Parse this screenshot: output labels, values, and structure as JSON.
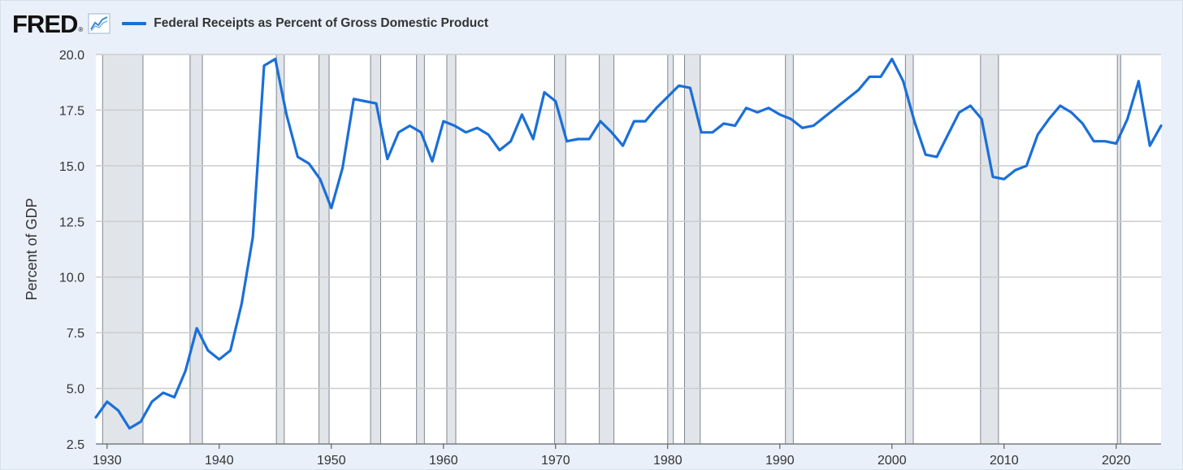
{
  "header": {
    "logo_text": "FRED",
    "logo_mark": "®",
    "graph_icon": "line-graph-icon",
    "series_label": "Federal Receipts as Percent of Gross Domestic Product"
  },
  "colors": {
    "background": "#e9f0fa",
    "plot_background": "#ffffff",
    "series": "#1a6fd8",
    "recession_shade": "#e1e5ea",
    "gridline": "#cccccc"
  },
  "chart_data": {
    "type": "line",
    "title": "",
    "xlabel": "",
    "ylabel": "Percent of GDP",
    "xlim": [
      1929,
      2024
    ],
    "ylim": [
      2.5,
      20.0
    ],
    "x_ticks": [
      1930,
      1940,
      1950,
      1960,
      1970,
      1980,
      1990,
      2000,
      2010,
      2020
    ],
    "y_ticks": [
      "2.5",
      "5.0",
      "7.5",
      "10.0",
      "12.5",
      "15.0",
      "17.5",
      "20.0"
    ],
    "grid": true,
    "legend_position": "top-left",
    "recessions": [
      [
        1929.6,
        1933.2
      ],
      [
        1937.4,
        1938.5
      ],
      [
        1945.1,
        1945.8
      ],
      [
        1948.9,
        1949.8
      ],
      [
        1953.5,
        1954.4
      ],
      [
        1957.6,
        1958.3
      ],
      [
        1960.3,
        1961.1
      ],
      [
        1969.9,
        1970.9
      ],
      [
        1973.9,
        1975.2
      ],
      [
        1980.0,
        1980.5
      ],
      [
        1981.5,
        1982.9
      ],
      [
        1990.5,
        1991.2
      ],
      [
        2001.2,
        2001.9
      ],
      [
        2007.9,
        2009.5
      ],
      [
        2020.1,
        2020.4
      ]
    ],
    "series": [
      {
        "name": "Federal Receipts as Percent of Gross Domestic Product",
        "x": [
          1929,
          1930,
          1931,
          1932,
          1933,
          1934,
          1935,
          1936,
          1937,
          1938,
          1939,
          1940,
          1941,
          1942,
          1943,
          1944,
          1945,
          1946,
          1947,
          1948,
          1949,
          1950,
          1951,
          1952,
          1953,
          1954,
          1955,
          1956,
          1957,
          1958,
          1959,
          1960,
          1961,
          1962,
          1963,
          1964,
          1965,
          1966,
          1967,
          1968,
          1969,
          1970,
          1971,
          1972,
          1973,
          1974,
          1975,
          1976,
          1977,
          1978,
          1979,
          1980,
          1981,
          1982,
          1983,
          1984,
          1985,
          1986,
          1987,
          1988,
          1989,
          1990,
          1991,
          1992,
          1993,
          1994,
          1995,
          1996,
          1997,
          1998,
          1999,
          2000,
          2001,
          2002,
          2003,
          2004,
          2005,
          2006,
          2007,
          2008,
          2009,
          2010,
          2011,
          2012,
          2013,
          2014,
          2015,
          2016,
          2017,
          2018,
          2019,
          2020,
          2021,
          2022,
          2023,
          2024
        ],
        "values": [
          3.7,
          4.4,
          4.0,
          3.2,
          3.5,
          4.4,
          4.8,
          4.6,
          5.8,
          7.7,
          6.7,
          6.3,
          6.7,
          8.8,
          11.8,
          19.5,
          19.8,
          17.3,
          15.4,
          15.1,
          14.4,
          13.1,
          14.9,
          18.0,
          17.9,
          17.8,
          15.3,
          16.5,
          16.8,
          16.5,
          15.2,
          17.0,
          16.8,
          16.5,
          16.7,
          16.4,
          15.7,
          16.1,
          17.3,
          16.2,
          18.3,
          17.9,
          16.1,
          16.2,
          16.2,
          17.0,
          16.5,
          15.9,
          17.0,
          17.0,
          17.6,
          18.1,
          18.6,
          18.5,
          16.5,
          16.5,
          16.9,
          16.8,
          17.6,
          17.4,
          17.6,
          17.3,
          17.1,
          16.7,
          16.8,
          17.2,
          17.6,
          18.0,
          18.4,
          19.0,
          19.0,
          19.8,
          18.8,
          17.0,
          15.5,
          15.4,
          16.4,
          17.4,
          17.7,
          17.1,
          14.5,
          14.4,
          14.8,
          15.0,
          16.4,
          17.1,
          17.7,
          17.4,
          16.9,
          16.1,
          16.1,
          16.0,
          17.1,
          18.8,
          15.9,
          16.8
        ]
      }
    ]
  }
}
